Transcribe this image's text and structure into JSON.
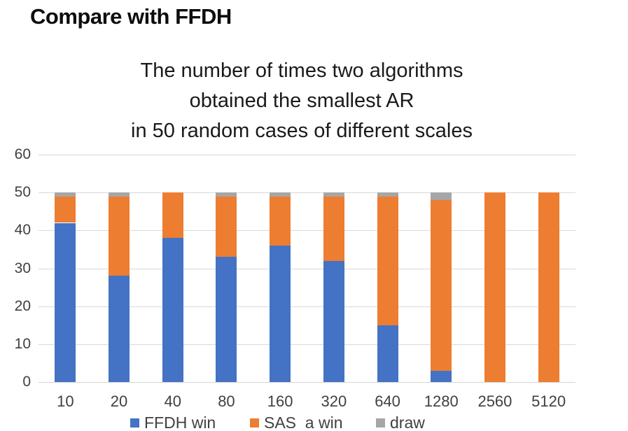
{
  "slide": {
    "title": "Compare with FFDH"
  },
  "chart_data": {
    "type": "bar",
    "stacked": true,
    "title_lines": [
      "The number of times two algorithms",
      "obtained the smallest AR",
      "in 50 random cases of different scales"
    ],
    "categories": [
      "10",
      "20",
      "40",
      "80",
      "160",
      "320",
      "640",
      "1280",
      "2560",
      "5120"
    ],
    "series": [
      {
        "name": "FFDH win",
        "color": "#4472C4",
        "values": [
          42,
          28,
          38,
          33,
          36,
          32,
          15,
          3,
          0,
          0
        ]
      },
      {
        "name": "SAS  a win",
        "color": "#ED7D31",
        "values": [
          7,
          21,
          12,
          16,
          13,
          17,
          34,
          45,
          50,
          50
        ]
      },
      {
        "name": "draw",
        "color": "#A6A6A6",
        "values": [
          1,
          1,
          0,
          1,
          1,
          1,
          1,
          2,
          0,
          0
        ]
      }
    ],
    "total_per_category": 50,
    "ylim": [
      0,
      60
    ],
    "ytick_step": 10,
    "yticks": [
      "0",
      "10",
      "20",
      "30",
      "40",
      "50",
      "60"
    ],
    "grid": true,
    "legend_position": "bottom",
    "colors": {
      "gridline": "#D9D9D9",
      "tick_text": "#404040",
      "title_text": "#1A1A1A"
    }
  }
}
